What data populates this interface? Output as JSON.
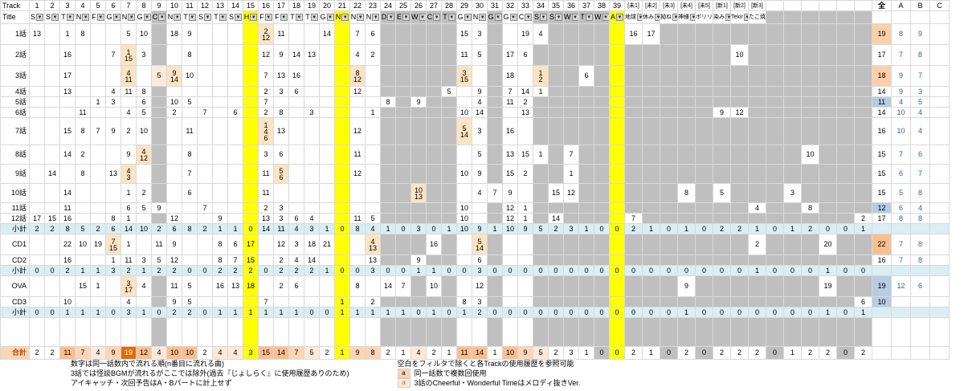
{
  "header": {
    "corner_row1": "Track",
    "corner_row2": "Title",
    "track_numbers": [
      1,
      2,
      3,
      4,
      5,
      6,
      7,
      8,
      9,
      10,
      11,
      12,
      13,
      14,
      15,
      16,
      17,
      18,
      19,
      20,
      21,
      22,
      23,
      24,
      25,
      26,
      27,
      28,
      29,
      30,
      31,
      32,
      33,
      34,
      35,
      36,
      37,
      38,
      39
    ],
    "track_letters": [
      "S",
      "S",
      "T",
      "N",
      "F",
      "G",
      "N",
      "G",
      "C",
      "N",
      "T",
      "S",
      "T",
      "S",
      "H",
      "F",
      "F",
      "T",
      "T",
      "G",
      "N",
      "N",
      "N",
      "D",
      "E",
      "W",
      "C",
      "T",
      "G",
      "N",
      "G",
      "G",
      "C",
      "S",
      "S",
      "W",
      "T",
      "W",
      "A"
    ],
    "special_columns": [
      {
        "tag": "[未1]",
        "title": "地球"
      },
      {
        "tag": "[未2]",
        "title": "休み"
      },
      {
        "tag": "[未3]",
        "title": "拗ね"
      },
      {
        "tag": "[未4]",
        "title": "神様"
      },
      {
        "tag": "[未5]",
        "title": "ポリリ"
      },
      {
        "tag": "[新1]",
        "title": "染み"
      },
      {
        "tag": "[新2]",
        "title": "Tekir"
      },
      {
        "tag": "[新3]",
        "title": "たこ焼"
      }
    ],
    "total_label": "全",
    "abc_labels": [
      "A",
      "B",
      "C"
    ]
  },
  "layout": {
    "yellow_cols": [
      15,
      21,
      39
    ],
    "gray_cols": [
      9,
      24,
      25,
      26,
      27,
      28,
      31,
      34,
      35,
      36,
      37,
      38
    ],
    "extra_col_count": 6
  },
  "styles": {
    "yellow": "#ffff00",
    "gray": "#bfbfbf",
    "subtotal_row": "#daeef3",
    "blue_cell": "#b8cce4",
    "salmon": "#fcd0a8",
    "orange": "#fabf8f",
    "cream": "#fbe4c3",
    "pale": "#fdeada",
    "hl1": "#fde9d9",
    "hl2": "#fcd5b4",
    "hl3": "#fabf8f",
    "hl4": "#e26b0a",
    "ab_text": "#2e5eaa",
    "gr_label_text": "#c0500a",
    "grid_line": "#d9d9d9"
  },
  "rows": [
    {
      "label": "1話",
      "type": "ep",
      "h": 26,
      "cells": {
        "1": "13",
        "3": "1",
        "4": "8",
        "7": "5",
        "8": "10",
        "10": "18",
        "11": "9",
        "16": "2|12",
        "17": "11",
        "20": "14",
        "22": "7",
        "23": "6",
        "29": "15",
        "30": "3",
        "33": "19",
        "34": "4"
      },
      "hl": {
        "16": "cream"
      },
      "sp": {
        "1": "16",
        "2": "17"
      },
      "total": "19",
      "total_bg": "salmon",
      "A": "8",
      "B": "9"
    },
    {
      "label": "2話",
      "type": "ep",
      "h": 26,
      "cells": {
        "3": "16",
        "6": "7",
        "7": "1|15",
        "8": "3",
        "11": "8",
        "16": "12",
        "17": "9",
        "18": "14",
        "19": "13",
        "22": "4",
        "23": "2",
        "29": "11",
        "30": "5",
        "32": "17",
        "33": "6"
      },
      "hl": {
        "7": "cream"
      },
      "sp": {
        "7": "10"
      },
      "total": "17",
      "A": "7",
      "B": "8"
    },
    {
      "label": "3話",
      "type": "ep",
      "h": 26,
      "cells": {
        "3": "17",
        "7": "4|11",
        "9": "5",
        "10": "9|14",
        "11": "10",
        "16": "7",
        "17": "13",
        "18": "16",
        "22": "8|12",
        "29": "3|15",
        "32": "18",
        "34": "1|2",
        "37": "6"
      },
      "hl": {
        "7": "cream",
        "9": "pale",
        "10": "cream",
        "22": "cream",
        "29": "cream",
        "34": "cream"
      },
      "total": "18",
      "total_bg": "salmon",
      "A": "9",
      "B": "7"
    },
    {
      "label": "4話",
      "type": "ep",
      "h": 13,
      "cells": {
        "3": "13",
        "6": "4",
        "7": "11",
        "8": "8",
        "16": "2",
        "17": "3",
        "18": "6",
        "22": "12",
        "28": "5",
        "30": "9",
        "32": "7",
        "33": "14",
        "34": "1"
      },
      "total": "14",
      "A": "9",
      "B": "3"
    },
    {
      "label": "5話",
      "type": "ep",
      "h": 13,
      "cells": {
        "5": "1",
        "6": "3",
        "8": "6",
        "10": "10",
        "11": "5",
        "16": "7",
        "24": "8",
        "26": "9",
        "30": "4",
        "32": "11",
        "33": "2"
      },
      "total": "11",
      "total_bg": "blue_cell",
      "A": "4",
      "B": "5"
    },
    {
      "label": "6話",
      "type": "ep",
      "h": 13,
      "cells": {
        "4": "11",
        "7": "4",
        "8": "5",
        "10": "2",
        "12": "7",
        "14": "6",
        "16": "2",
        "17": "8",
        "19": "3",
        "23": "1",
        "29": "10",
        "30": "14",
        "33": "13"
      },
      "sp": {
        "6": "9",
        "7": "12"
      },
      "total": "14",
      "A": "10",
      "B": "4"
    },
    {
      "label": "7話",
      "type": "ep",
      "h": 34,
      "cells": {
        "3": "15",
        "4": "8",
        "5": "7",
        "6": "9",
        "7": "2",
        "8": "10",
        "11": "11",
        "16": "1|4|6",
        "17": "13",
        "22": "12",
        "29": "5|14",
        "30": "3",
        "32": "16"
      },
      "hl": {
        "16": "cream",
        "29": "cream"
      },
      "total": "16",
      "A": "10",
      "B": "4"
    },
    {
      "label": "8話",
      "type": "ep",
      "h": 24,
      "cells": {
        "3": "14",
        "4": "2",
        "7": "9",
        "8": "4|12",
        "11": "8",
        "16": "3",
        "17": "6",
        "22": "11",
        "30": "5",
        "32": "13",
        "33": "15",
        "34": "1",
        "36": "7"
      },
      "hl": {
        "8": "cream"
      },
      "ex": {
        "3": "10"
      },
      "total": "15",
      "A": "7",
      "B": "6"
    },
    {
      "label": "9話",
      "type": "ep",
      "h": 24,
      "cells": {
        "2": "14",
        "4": "8",
        "6": "13",
        "7": "4|3",
        "11": "7",
        "16": "11",
        "17": "5|6",
        "22": "12",
        "29": "10",
        "30": "9",
        "32": "15",
        "33": "2",
        "36": "1"
      },
      "hl": {
        "7": "cream",
        "17": "cream"
      },
      "total": "15",
      "A": "6",
      "B": "7"
    },
    {
      "label": "10話",
      "type": "ep",
      "h": 24,
      "cells": {
        "3": "14",
        "7": "1",
        "8": "2",
        "11": "6",
        "16": "11",
        "26": "10|13",
        "30": "4",
        "31": "7",
        "32": "9",
        "35": "15",
        "36": "12"
      },
      "hl": {
        "26": "cream"
      },
      "sp": {
        "4": "8",
        "6": "5"
      },
      "ex": {
        "2": "3"
      },
      "total": "15",
      "A": "5",
      "B": "8"
    },
    {
      "label": "11話",
      "type": "ep",
      "h": 13,
      "cells": {
        "3": "11",
        "7": "6",
        "8": "5",
        "9": "9",
        "12": "7",
        "16": "2",
        "17": "3",
        "29": "10",
        "32": "12",
        "33": "1"
      },
      "sp": {
        "8": "4"
      },
      "ex": {
        "3": "8"
      },
      "total": "12",
      "total_bg": "blue_cell",
      "A": "6",
      "B": "4"
    },
    {
      "label": "12話",
      "type": "ep",
      "h": 13,
      "cells": {
        "1": "17",
        "2": "15",
        "3": "16",
        "6": "8",
        "7": "1",
        "10": "12",
        "13": "9",
        "16": "13",
        "17": "3",
        "18": "6",
        "19": "4",
        "22": "11",
        "23": "5",
        "29": "10",
        "32": "12",
        "33": "1",
        "35": "14"
      },
      "sp": {
        "1": "7"
      },
      "ex": {
        "6": "2"
      },
      "total": "17",
      "A": "8",
      "B": "8"
    },
    {
      "label": "小計",
      "type": "sub",
      "h": 13,
      "vals": [
        2,
        2,
        8,
        5,
        2,
        6,
        14,
        10,
        2,
        6,
        8,
        2,
        1,
        1,
        0,
        14,
        11,
        4,
        3,
        1,
        0,
        8,
        4,
        1,
        0,
        3,
        0,
        1,
        10,
        9,
        1,
        10,
        9,
        5,
        2,
        3,
        1,
        0,
        0
      ],
      "sp_vals": [
        2,
        1,
        0,
        1,
        0,
        2,
        2,
        1
      ],
      "ex_vals": [
        0,
        1,
        2,
        0,
        0,
        1
      ]
    },
    {
      "label": "CD1",
      "type": "ep",
      "h": 26,
      "cells": {
        "3": "22",
        "4": "10",
        "5": "19",
        "6": "7|15",
        "7": "1",
        "9": "11",
        "10": "9",
        "13": "8",
        "14": "6",
        "15": "17",
        "17": "12",
        "18": "3",
        "19": "18",
        "20": "21",
        "23": "4|13",
        "27": "16",
        "30": "5|14"
      },
      "hl": {
        "6": "cream",
        "23": "cream",
        "30": "cream"
      },
      "sp": {
        "8": "2"
      },
      "ex": {
        "4": "20"
      },
      "total": "22",
      "total_bg": "orange",
      "A": "7",
      "B": "8"
    },
    {
      "label": "CD2",
      "type": "ep",
      "h": 13,
      "cells": {
        "3": "16",
        "6": "1",
        "7": "11",
        "8": "3",
        "9": "5",
        "10": "12",
        "13": "8",
        "14": "7",
        "15": "15",
        "17": "2",
        "18": "4",
        "19": "14",
        "23": "13",
        "26": "9",
        "30": "6"
      },
      "total": "16",
      "A": "7",
      "B": "8"
    },
    {
      "label": "小計",
      "type": "sub",
      "h": 13,
      "vals": [
        0,
        0,
        2,
        1,
        1,
        3,
        2,
        1,
        2,
        2,
        0,
        0,
        2,
        2,
        2,
        0,
        2,
        2,
        2,
        1,
        0,
        0,
        3,
        0,
        0,
        1,
        1,
        0,
        0,
        3,
        0,
        0,
        0,
        0,
        0,
        0,
        0,
        0,
        0
      ],
      "sp_vals": [
        0,
        0,
        0,
        0,
        0,
        0,
        0,
        1
      ],
      "ex_vals": [
        0,
        0,
        0,
        1,
        0,
        0
      ]
    },
    {
      "label": "OVA",
      "type": "ep",
      "h": 26,
      "cells": {
        "4": "15",
        "5": "1",
        "7": "3|17",
        "8": "4",
        "10": "11",
        "11": "5",
        "13": "16",
        "14": "13",
        "15": "18",
        "17": "2",
        "18": "6",
        "22": "8",
        "24": "14",
        "25": "7",
        "27": "10",
        "30": "12"
      },
      "hl": {
        "7": "cream"
      },
      "sp": {
        "4": "9"
      },
      "ex": {
        "4": "19"
      },
      "total": "19",
      "total_bg": "blue_cell",
      "A": "12",
      "B": "6"
    },
    {
      "label": "CD3",
      "type": "ep",
      "h": 13,
      "cells": {
        "3": "10",
        "7": "4",
        "10": "9",
        "11": "5",
        "16": "7",
        "21": "1",
        "23": "2",
        "29": "8",
        "30": "3"
      },
      "ex": {
        "6": "6"
      },
      "total": "10",
      "total_bg": "blue_cell"
    },
    {
      "label": "小計",
      "type": "sub",
      "h": 13,
      "vals": [
        0,
        0,
        1,
        1,
        1,
        0,
        3,
        1,
        0,
        2,
        2,
        0,
        1,
        1,
        1,
        1,
        1,
        1,
        0,
        0,
        1,
        1,
        1,
        1,
        1,
        0,
        1,
        0,
        1,
        2,
        0,
        0,
        0,
        0,
        0,
        0,
        0,
        0,
        0
      ],
      "sp_vals": [
        0,
        0,
        0,
        1,
        0,
        0,
        0,
        0
      ],
      "ex_vals": [
        0,
        0,
        0,
        1,
        0,
        1
      ]
    },
    {
      "label": "",
      "type": "spacer",
      "h": 36
    },
    {
      "label": "合計",
      "type": "grand",
      "h": 16,
      "vals": [
        2,
        2,
        11,
        7,
        4,
        9,
        19,
        12,
        4,
        10,
        10,
        2,
        4,
        4,
        3,
        15,
        14,
        7,
        5,
        2,
        1,
        9,
        8,
        2,
        1,
        4,
        2,
        1,
        11,
        14,
        1,
        10,
        9,
        5,
        2,
        3,
        1,
        0,
        0
      ],
      "sp_vals": [
        2,
        1,
        0,
        2,
        0,
        2,
        2,
        2
      ],
      "ex_vals": [
        0,
        1,
        2,
        2,
        0,
        2
      ]
    }
  ],
  "footer": {
    "left": [
      "数字は同一話数内で流れる順(n番目に流れる曲)",
      "3話では怪談BGMが流れるがここでは除外(過去『じょしらく』に使用履歴ありのため)",
      "アイキャッチ・次回予告はA・Bパートに計上せず"
    ],
    "right": "空白をフィルタで除くと各Trackの使用履歴を参照可能",
    "legend": [
      {
        "mark": "a",
        "text": "同一話数で複数回使用"
      },
      {
        "mark": "a",
        "text": "3話のCheerful・Wonderful Timeはメロディ抜きVer."
      }
    ]
  }
}
